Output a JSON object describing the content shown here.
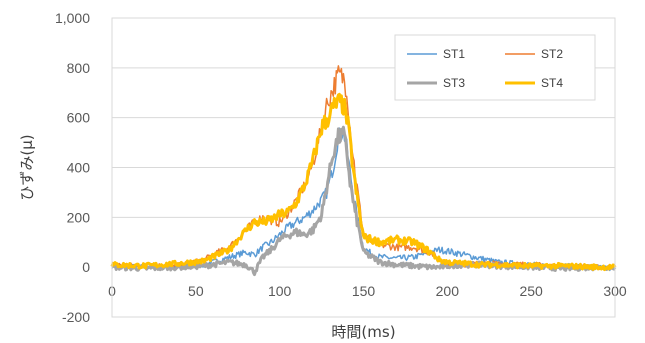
{
  "chart_data": {
    "type": "line",
    "title": "",
    "xlabel": "時間(ms)",
    "ylabel": "ひずみ(μ)",
    "xlim": [
      0,
      300
    ],
    "ylim": [
      -200,
      1000
    ],
    "x_ticks": [
      0,
      50,
      100,
      150,
      200,
      250,
      300
    ],
    "y_ticks": [
      -200,
      0,
      200,
      400,
      600,
      800,
      1000
    ],
    "x_tick_labels": [
      "0",
      "50",
      "100",
      "150",
      "200",
      "250",
      "300"
    ],
    "y_tick_labels": [
      "-200",
      "0",
      "200",
      "400",
      "600",
      "800",
      "1,000"
    ],
    "grid": "horizontal",
    "legend_position": "top-right",
    "legend_columns": 2,
    "series": [
      {
        "name": "ST1",
        "color": "#5B9BD5",
        "width": 1.5,
        "x": [
          0,
          20,
          40,
          55,
          60,
          70,
          80,
          85,
          90,
          95,
          100,
          105,
          110,
          115,
          120,
          125,
          128,
          132,
          135,
          138,
          140,
          142,
          145,
          148,
          150,
          155,
          160,
          170,
          180,
          190,
          195,
          200,
          210,
          220,
          230,
          250,
          270,
          290,
          300
        ],
        "y": [
          5,
          0,
          3,
          10,
          20,
          40,
          60,
          50,
          80,
          100,
          130,
          160,
          180,
          200,
          230,
          270,
          300,
          400,
          520,
          550,
          480,
          380,
          250,
          130,
          80,
          50,
          40,
          35,
          40,
          60,
          70,
          65,
          50,
          35,
          20,
          10,
          5,
          0,
          -5
        ]
      },
      {
        "name": "ST2",
        "color": "#ED7D31",
        "width": 1.5,
        "x": [
          0,
          20,
          40,
          55,
          60,
          70,
          80,
          85,
          90,
          95,
          100,
          105,
          110,
          115,
          120,
          125,
          128,
          132,
          135,
          138,
          140,
          142,
          145,
          148,
          150,
          155,
          160,
          170,
          180,
          190,
          195,
          200,
          210,
          220,
          230,
          250,
          270,
          290,
          300
        ],
        "y": [
          10,
          5,
          8,
          30,
          50,
          80,
          150,
          180,
          200,
          190,
          180,
          220,
          270,
          330,
          420,
          560,
          650,
          720,
          770,
          760,
          720,
          560,
          380,
          230,
          140,
          100,
          90,
          80,
          80,
          60,
          30,
          10,
          10,
          15,
          15,
          10,
          5,
          0,
          0
        ]
      },
      {
        "name": "ST3",
        "color": "#A5A5A5",
        "width": 3,
        "x": [
          0,
          20,
          40,
          55,
          60,
          70,
          80,
          85,
          90,
          95,
          100,
          105,
          110,
          115,
          120,
          125,
          128,
          132,
          135,
          138,
          140,
          142,
          145,
          148,
          150,
          155,
          160,
          170,
          180,
          190,
          195,
          200,
          210,
          220,
          230,
          250,
          270,
          290,
          300
        ],
        "y": [
          0,
          -5,
          0,
          5,
          10,
          20,
          10,
          -20,
          40,
          70,
          110,
          130,
          140,
          130,
          150,
          210,
          320,
          460,
          520,
          530,
          470,
          340,
          220,
          130,
          60,
          40,
          20,
          10,
          5,
          0,
          0,
          5,
          10,
          10,
          5,
          0,
          -5,
          0,
          0
        ]
      },
      {
        "name": "ST4",
        "color": "#FFC000",
        "width": 3,
        "x": [
          0,
          20,
          40,
          55,
          60,
          70,
          80,
          85,
          90,
          95,
          100,
          105,
          110,
          115,
          120,
          125,
          128,
          132,
          135,
          138,
          140,
          142,
          145,
          148,
          150,
          155,
          160,
          170,
          180,
          190,
          195,
          200,
          210,
          220,
          230,
          250,
          270,
          290,
          300
        ],
        "y": [
          10,
          5,
          15,
          25,
          40,
          70,
          150,
          180,
          180,
          190,
          210,
          220,
          260,
          330,
          430,
          560,
          590,
          640,
          660,
          650,
          600,
          500,
          330,
          200,
          120,
          110,
          100,
          110,
          100,
          60,
          30,
          20,
          15,
          10,
          10,
          5,
          5,
          0,
          0
        ]
      }
    ]
  }
}
